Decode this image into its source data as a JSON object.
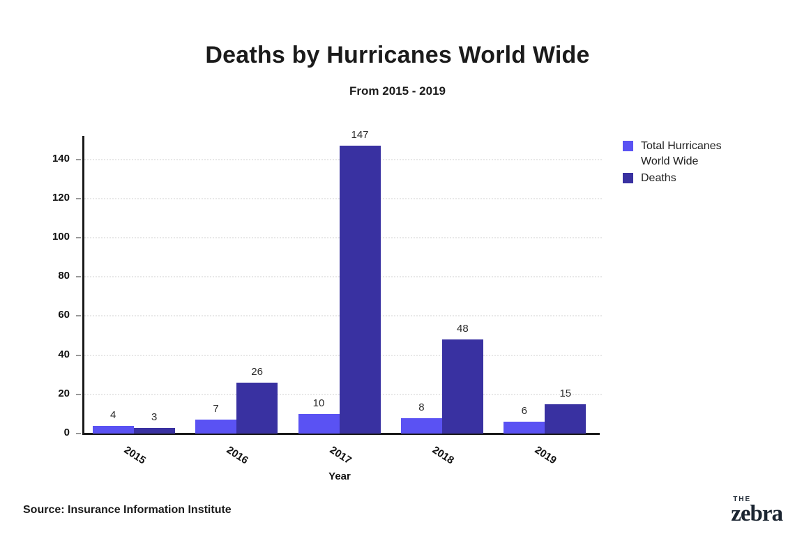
{
  "header": {
    "title": "Deaths by Hurricanes World Wide",
    "subtitle": "From 2015 - 2019"
  },
  "chart_data": {
    "type": "bar",
    "categories": [
      "2015",
      "2016",
      "2017",
      "2018",
      "2019"
    ],
    "series": [
      {
        "name": "Total Hurricanes World Wide",
        "color": "#5A52F3",
        "values": [
          4,
          7,
          10,
          8,
          6
        ]
      },
      {
        "name": "Deaths",
        "color": "#3931A1",
        "values": [
          3,
          26,
          147,
          48,
          15
        ]
      }
    ],
    "title": "Deaths by Hurricanes World Wide",
    "subtitle": "From 2015 - 2019",
    "xlabel": "Year",
    "ylabel": "",
    "ylim": [
      0,
      152
    ],
    "yticks": [
      0,
      20,
      40,
      60,
      80,
      100,
      120,
      140
    ],
    "grid": "horizontal-dotted",
    "legend_position": "right",
    "bar_labels": true
  },
  "footer": {
    "source": "Source: Insurance Information Institute",
    "logo_top": "THE",
    "logo_text": "zebra"
  }
}
